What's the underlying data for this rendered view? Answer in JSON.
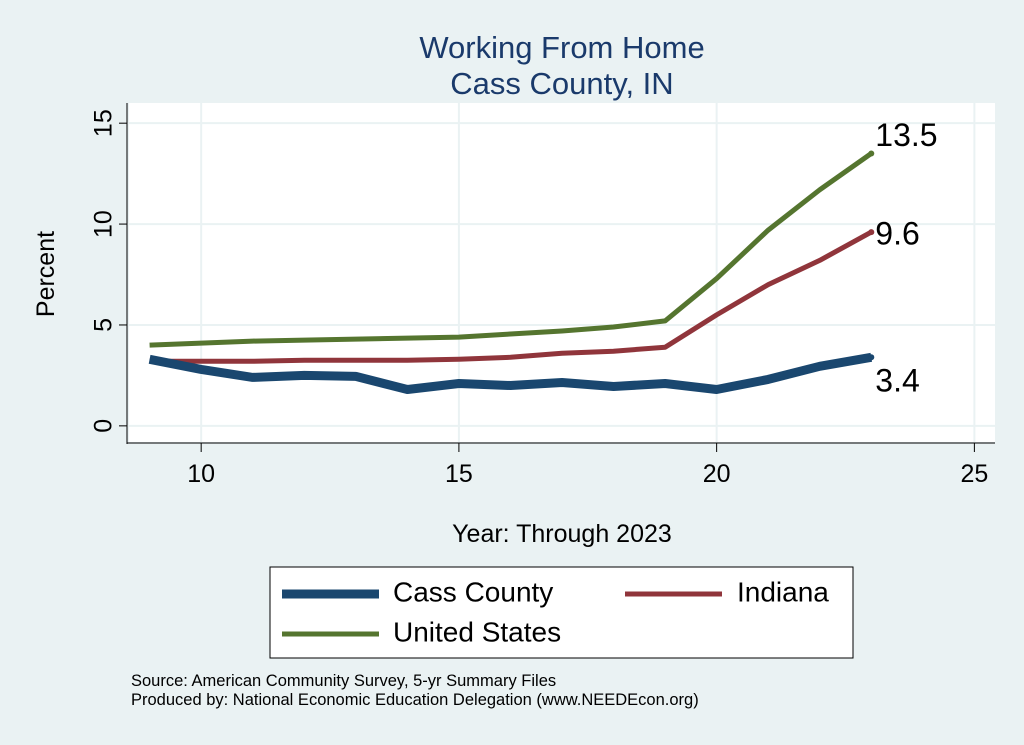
{
  "chart_data": {
    "type": "line",
    "title": [
      "Working From Home",
      "Cass County, IN"
    ],
    "xlabel": "Year: Through 2023",
    "ylabel": "Percent",
    "xlim": [
      8.6,
      25.4
    ],
    "ylim": [
      -0.8,
      16
    ],
    "xticks": [
      10,
      15,
      20,
      25
    ],
    "yticks": [
      0,
      5,
      10,
      15
    ],
    "grid": true,
    "legend_position": "bottom",
    "x": [
      9,
      10,
      11,
      12,
      13,
      14,
      15,
      16,
      17,
      18,
      19,
      20,
      21,
      22,
      23
    ],
    "series": [
      {
        "name": "Cass County",
        "color": "#1a476f",
        "values": [
          3.3,
          2.8,
          2.4,
          2.5,
          2.45,
          1.8,
          2.1,
          2.0,
          2.15,
          1.95,
          2.1,
          1.8,
          2.3,
          2.95,
          3.4
        ],
        "end_label": "3.4"
      },
      {
        "name": "Indiana",
        "color": "#90353b",
        "values": [
          3.2,
          3.2,
          3.2,
          3.25,
          3.25,
          3.25,
          3.3,
          3.4,
          3.6,
          3.7,
          3.9,
          5.5,
          7.0,
          8.2,
          9.6
        ],
        "end_label": "9.6"
      },
      {
        "name": "United States",
        "color": "#55752f",
        "values": [
          4.0,
          4.1,
          4.2,
          4.25,
          4.3,
          4.35,
          4.4,
          4.55,
          4.7,
          4.9,
          5.2,
          7.3,
          9.7,
          11.7,
          13.5
        ],
        "end_label": "13.5"
      }
    ]
  },
  "notes": {
    "source": "Source: American Community Survey, 5-yr Summary Files",
    "produced_by": "Produced by: National Economic Education Delegation (www.NEEDEcon.org)"
  }
}
